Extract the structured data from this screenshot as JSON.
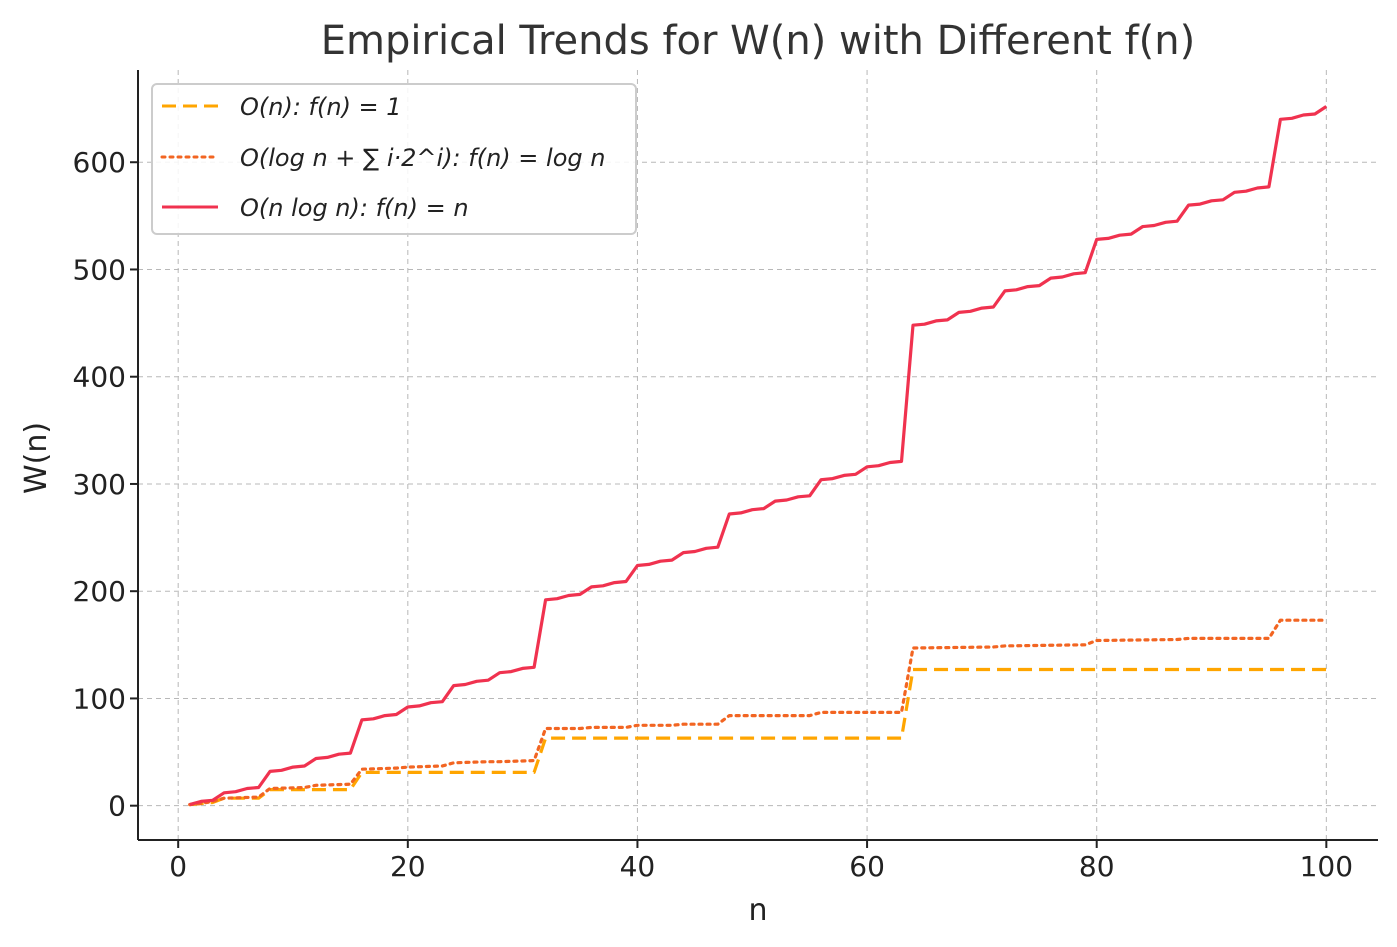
{
  "chart_data": {
    "type": "line",
    "title": "Empirical Trends for W(n) with Different f(n)",
    "xlabel": "n",
    "ylabel": "W(n)",
    "xlim": [
      -3.5,
      104.5
    ],
    "ylim": [
      -32,
      686
    ],
    "xticks": [
      0,
      20,
      40,
      60,
      80,
      100
    ],
    "yticks": [
      0,
      100,
      200,
      300,
      400,
      500,
      600
    ],
    "grid": true,
    "legend_position": "top-left",
    "series": [
      {
        "name": "O(n): f(n) = 1",
        "color": "#FFA500",
        "style": "dashed",
        "x": [
          1,
          3,
          4,
          7,
          8,
          15,
          16,
          31,
          32,
          63,
          64,
          100
        ],
        "y": [
          1,
          3,
          7,
          7,
          15,
          15,
          31,
          31,
          63,
          63,
          127,
          127
        ]
      },
      {
        "name": "O(log n + ∑ i·2^i): f(n) = log n",
        "color": "#F26522",
        "style": "dotted",
        "x": [
          1,
          2,
          3,
          4,
          7,
          8,
          11,
          12,
          15,
          16,
          19,
          20,
          23,
          24,
          27,
          28,
          31,
          32,
          35,
          36,
          39,
          40,
          43,
          44,
          47,
          48,
          51,
          52,
          55,
          56,
          59,
          60,
          63,
          64,
          71,
          72,
          79,
          80,
          87,
          88,
          95,
          96,
          100
        ],
        "y": [
          1,
          2,
          4,
          7,
          8,
          16,
          17,
          19,
          20,
          34,
          35,
          36,
          37,
          40,
          41,
          41,
          42,
          72,
          72,
          73,
          73,
          75,
          75,
          76,
          76,
          84,
          84,
          84,
          84,
          87,
          87,
          87,
          87,
          147,
          148,
          149,
          150,
          154,
          155,
          156,
          156,
          173,
          173
        ]
      },
      {
        "name": "O(n log n): f(n) = n",
        "color": "#F0324F",
        "style": "solid",
        "x": [
          1,
          2,
          3,
          4,
          5,
          6,
          7,
          8,
          9,
          10,
          11,
          12,
          13,
          14,
          15,
          16,
          17,
          18,
          19,
          20,
          21,
          22,
          23,
          24,
          25,
          26,
          27,
          28,
          29,
          30,
          31,
          32,
          33,
          34,
          35,
          36,
          37,
          38,
          39,
          40,
          41,
          42,
          43,
          44,
          45,
          46,
          47,
          48,
          49,
          50,
          51,
          52,
          53,
          54,
          55,
          56,
          57,
          58,
          59,
          60,
          61,
          62,
          63,
          64,
          65,
          66,
          67,
          68,
          69,
          70,
          71,
          72,
          73,
          74,
          75,
          76,
          77,
          78,
          79,
          80,
          81,
          82,
          83,
          84,
          85,
          86,
          87,
          88,
          89,
          90,
          91,
          92,
          93,
          94,
          95,
          96,
          97,
          98,
          99,
          100
        ],
        "y": [
          1,
          4,
          5,
          12,
          13,
          16,
          17,
          32,
          33,
          36,
          37,
          44,
          45,
          48,
          49,
          80,
          81,
          84,
          85,
          92,
          93,
          96,
          97,
          112,
          113,
          116,
          117,
          124,
          125,
          128,
          129,
          192,
          193,
          196,
          197,
          204,
          205,
          208,
          209,
          224,
          225,
          228,
          229,
          236,
          237,
          240,
          241,
          272,
          273,
          276,
          277,
          284,
          285,
          288,
          289,
          304,
          305,
          308,
          309,
          316,
          317,
          320,
          321,
          448,
          449,
          452,
          453,
          460,
          461,
          464,
          465,
          480,
          481,
          484,
          485,
          492,
          493,
          496,
          497,
          528,
          529,
          532,
          533,
          540,
          541,
          544,
          545,
          560,
          561,
          564,
          565,
          572,
          573,
          576,
          577,
          640,
          641,
          644,
          645,
          652
        ]
      }
    ]
  }
}
